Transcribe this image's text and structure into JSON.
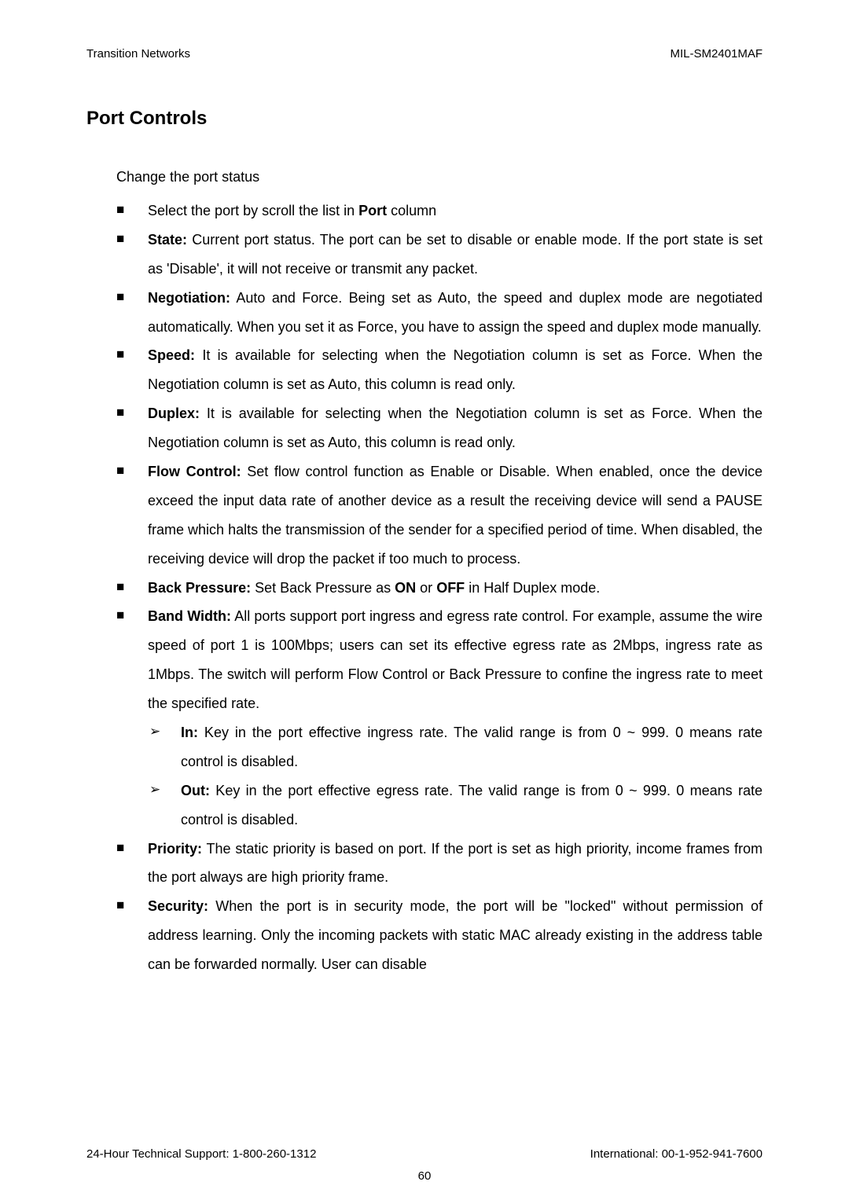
{
  "header": {
    "left": "Transition Networks",
    "right": "MIL-SM2401MAF"
  },
  "title": "Port Controls",
  "intro": "Change the port status",
  "bullets": [
    {
      "prefix": "",
      "label": "",
      "text": "Select the port by scroll the list in ",
      "bold2": "Port",
      "tail": " column"
    },
    {
      "label": "State:",
      "text": " Current port status. The port can be set to disable or enable mode. If the port state is set as 'Disable', it will not receive or transmit any packet."
    },
    {
      "label": "Negotiation:",
      "text": " Auto and Force. Being set as Auto, the speed and duplex mode are negotiated automatically. When you set it as Force, you have to assign the speed and duplex mode manually."
    },
    {
      "label": "Speed:",
      "text": " It is available for selecting when the Negotiation column is set as Force. When the Negotiation column is set as Auto, this column is read only."
    },
    {
      "label": "Duplex:",
      "text": " It is available for selecting when the Negotiation column is set as Force. When the Negotiation column is set as Auto, this column is read only."
    },
    {
      "label": "Flow Control:",
      "text": " Set flow control function as Enable or Disable. When enabled, once the device exceed the input data rate of another device as a result the receiving device will send a PAUSE frame which halts the transmission of the sender for a specified period of time. When disabled, the receiving device will drop the packet if too much to process."
    },
    {
      "label": "Back Pressure:",
      "text": " Set Back Pressure as ",
      "bold2": "ON",
      "mid": " or ",
      "bold3": "OFF",
      "tail": " in Half Duplex mode."
    },
    {
      "label": "Band Width:",
      "text": " All ports support port ingress and egress rate control. For example, assume the wire speed of port 1 is 100Mbps; users can set its effective egress rate as 2Mbps, ingress rate as 1Mbps. The switch will perform Flow Control or Back Pressure to confine the ingress rate to meet the specified rate.",
      "sub": [
        {
          "label": "In:",
          "text": " Key in the port effective ingress rate. The valid range is from 0 ~ 999. 0 means rate control is disabled."
        },
        {
          "label": "Out:",
          "text": " Key in the port effective egress rate. The valid range is from 0 ~ 999. 0 means rate control is disabled."
        }
      ]
    },
    {
      "label": "Priority:",
      "text": " The static priority is based on port. If the port is set as high priority, income frames from the port always are high priority frame."
    },
    {
      "label": "Security:",
      "text": " When the port is in security mode, the port will be \"locked\" without permission of address learning. Only the incoming packets with static MAC already existing in the address table can be forwarded normally. User can disable"
    }
  ],
  "footer": {
    "left": "24-Hour Technical Support: 1-800-260-1312",
    "right": "International: 00-1-952-941-7600"
  },
  "page": "60"
}
